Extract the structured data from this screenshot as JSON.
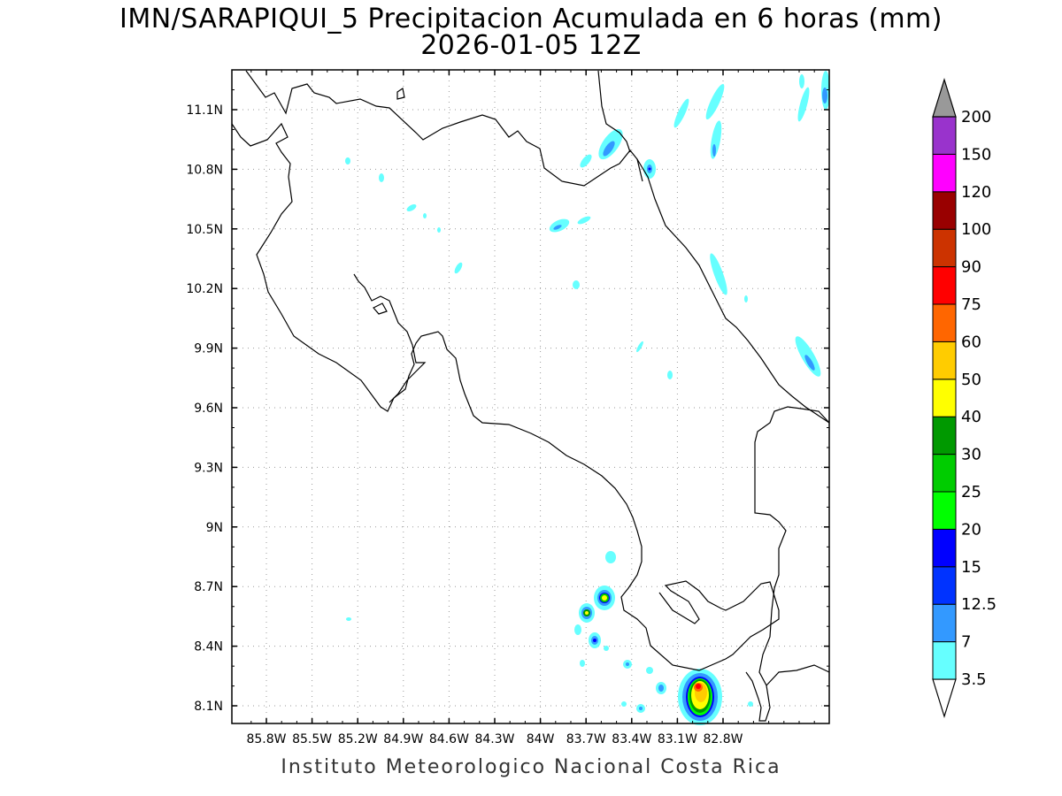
{
  "title_line1": "IMN/SARAPIQUI_5 Precipitacion Acumulada en 6 horas (mm)",
  "title_line2": "2026-01-05 12Z",
  "footer": "Instituto Meteorologico Nacional Costa Rica",
  "map": {
    "lon_ticks": [
      "85.8W",
      "85.5W",
      "85.2W",
      "84.9W",
      "84.6W",
      "84.3W",
      "84W",
      "83.7W",
      "83.4W",
      "83.1W",
      "82.8W"
    ],
    "lat_ticks": [
      "11.1N",
      "10.8N",
      "10.5N",
      "10.2N",
      "9.9N",
      "9.6N",
      "9.3N",
      "9N",
      "8.7N",
      "8.4N",
      "8.1N"
    ],
    "grid": "dotted"
  },
  "colorbar": {
    "labels": [
      "3.5",
      "7",
      "12.5",
      "15",
      "20",
      "25",
      "30",
      "40",
      "50",
      "60",
      "75",
      "90",
      "100",
      "120",
      "150",
      "200"
    ],
    "colors": [
      "#66ffff",
      "#3399ff",
      "#0033ff",
      "#0000ff",
      "#00ff00",
      "#00cc00",
      "#009900",
      "#ffff00",
      "#ffcc00",
      "#ff6600",
      "#ff0000",
      "#cc3300",
      "#990000",
      "#ff00ff",
      "#9933cc",
      "#f2f2f2",
      "#999999"
    ]
  }
}
